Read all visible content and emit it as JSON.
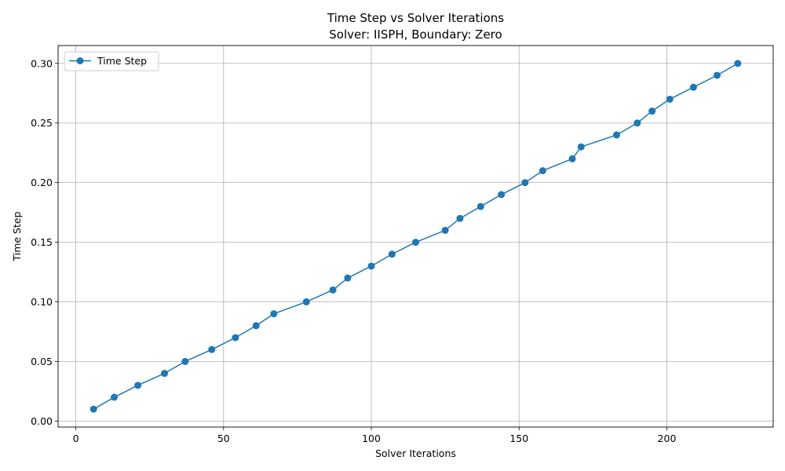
{
  "chart_data": {
    "type": "line",
    "title": "Time Step vs Solver Iterations",
    "subtitle": "Solver: IISPH, Boundary: Zero",
    "xlabel": "Solver Iterations",
    "ylabel": "Time Step",
    "xlim": [
      -6,
      236
    ],
    "ylim": [
      -0.005,
      0.315
    ],
    "xticks": [
      0,
      50,
      100,
      150,
      200
    ],
    "xtick_labels": [
      "0",
      "50",
      "100",
      "150",
      "200"
    ],
    "yticks": [
      0.0,
      0.05,
      0.1,
      0.15,
      0.2,
      0.25,
      0.3
    ],
    "ytick_labels": [
      "0.00",
      "0.05",
      "0.10",
      "0.15",
      "0.20",
      "0.25",
      "0.30"
    ],
    "grid": true,
    "legend": {
      "position": "top-left"
    },
    "series": [
      {
        "name": "Time Step",
        "color": "#1f77b4",
        "marker": "circle",
        "x": [
          6,
          13,
          21,
          30,
          37,
          46,
          54,
          61,
          67,
          78,
          87,
          92,
          100,
          107,
          115,
          125,
          130,
          137,
          144,
          152,
          158,
          168,
          171,
          183,
          190,
          195,
          201,
          209,
          217,
          224
        ],
        "y": [
          0.01,
          0.02,
          0.03,
          0.04,
          0.05,
          0.06,
          0.07,
          0.08,
          0.09,
          0.1,
          0.11,
          0.12,
          0.13,
          0.14,
          0.15,
          0.16,
          0.17,
          0.18,
          0.19,
          0.2,
          0.21,
          0.22,
          0.23,
          0.24,
          0.25,
          0.26,
          0.27,
          0.28,
          0.29,
          0.3
        ]
      }
    ]
  }
}
